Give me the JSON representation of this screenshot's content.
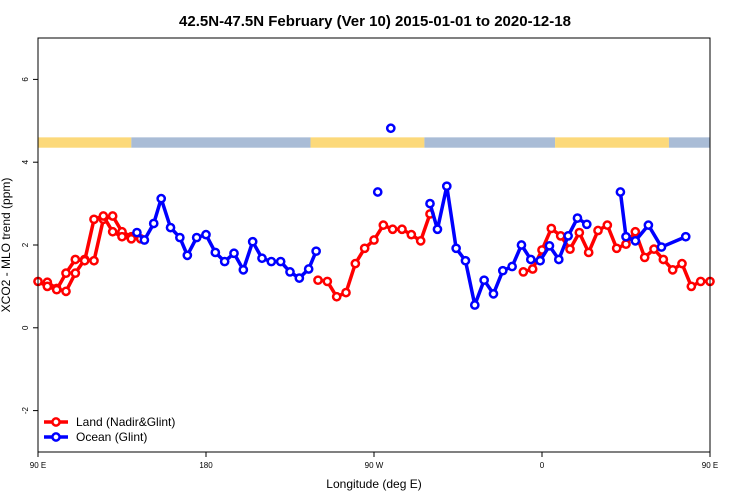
{
  "chart_data": {
    "type": "line",
    "title": "42.5N-47.5N February (Ver 10)   2015-01-01 to 2020-12-18",
    "xlabel": "Longitude (deg E)",
    "ylabel": "XCO2 - MLO trend (ppm)",
    "xlim": [
      90,
      450
    ],
    "ylim": [
      -3,
      7
    ],
    "x_ticks": [
      {
        "value": 90,
        "label": "90 E"
      },
      {
        "value": 180,
        "label": "180"
      },
      {
        "value": 270,
        "label": "90 W"
      },
      {
        "value": 360,
        "label": "0"
      },
      {
        "value": 450,
        "label": "90 E"
      },
      {
        "value": 540,
        "label": "180"
      }
    ],
    "y_ticks": [
      {
        "value": -2,
        "label": "-2"
      },
      {
        "value": 0,
        "label": "0"
      },
      {
        "value": 2,
        "label": "2"
      },
      {
        "value": 4,
        "label": "4"
      },
      {
        "value": 6,
        "label": "6"
      }
    ],
    "legend_position": "bottom-left",
    "land_ocean_band": {
      "y_range": [
        4.35,
        4.6
      ],
      "land_color": "#fcd97a",
      "ocean_color": "#a9bcd6",
      "segments": [
        {
          "from": 90,
          "to": 140,
          "kind": "land"
        },
        {
          "from": 140,
          "to": 236,
          "kind": "ocean"
        },
        {
          "from": 236,
          "to": 297,
          "kind": "land"
        },
        {
          "from": 297,
          "to": 367,
          "kind": "ocean"
        },
        {
          "from": 367,
          "to": 428,
          "kind": "land"
        },
        {
          "from": 428,
          "to": 450,
          "kind": "ocean"
        }
      ]
    },
    "series": [
      {
        "name": "Land (Nadir&Glint)",
        "color": "#ff0000",
        "segments": [
          [
            [
              95,
              1.1
            ],
            [
              100,
              0.95
            ],
            [
              105,
              0.88
            ],
            [
              110,
              1.32
            ],
            [
              115,
              1.65
            ],
            [
              120,
              1.62
            ],
            [
              125,
              2.62
            ],
            [
              130,
              2.7
            ],
            [
              135,
              2.32
            ],
            [
              140,
              2.2
            ],
            [
              145,
              2.15
            ]
          ],
          [
            [
              240,
              1.15
            ],
            [
              245,
              1.12
            ],
            [
              250,
              0.75
            ],
            [
              255,
              0.85
            ],
            [
              260,
              1.55
            ],
            [
              265,
              1.92
            ],
            [
              270,
              2.12
            ],
            [
              275,
              2.48
            ],
            [
              280,
              2.38
            ],
            [
              285,
              2.38
            ],
            [
              290,
              2.25
            ],
            [
              295,
              2.1
            ],
            [
              300,
              2.75
            ]
          ],
          [
            [
              350,
              1.35
            ],
            [
              355,
              1.42
            ],
            [
              360,
              1.88
            ],
            [
              365,
              2.4
            ],
            [
              370,
              2.22
            ],
            [
              375,
              1.9
            ],
            [
              380,
              2.3
            ],
            [
              385,
              1.82
            ],
            [
              390,
              2.35
            ],
            [
              395,
              2.48
            ],
            [
              400,
              1.92
            ],
            [
              405,
              2.02
            ],
            [
              410,
              2.32
            ],
            [
              415,
              1.7
            ],
            [
              420,
              1.9
            ],
            [
              425,
              1.65
            ],
            [
              430,
              1.4
            ],
            [
              435,
              1.55
            ],
            [
              440,
              1.0
            ],
            [
              445,
              1.12
            ],
            [
              450,
              1.12
            ]
          ],
          [
            [
              90,
              1.12
            ],
            [
              95,
              1.0
            ],
            [
              100,
              0.92
            ],
            [
              105,
              1.32
            ],
            [
              110,
              1.65
            ],
            [
              115,
              1.62
            ],
            [
              120,
              2.62
            ],
            [
              125,
              2.7
            ],
            [
              130,
              2.32
            ],
            [
              135,
              2.2
            ],
            [
              140,
              2.15
            ]
          ]
        ]
      },
      {
        "name": "Ocean (Glint)",
        "color": "#0000ff",
        "segments": [
          [
            [
              143,
              2.3
            ],
            [
              147,
              2.12
            ],
            [
              152,
              2.52
            ],
            [
              156,
              3.12
            ],
            [
              161,
              2.42
            ],
            [
              166,
              2.18
            ],
            [
              170,
              1.75
            ],
            [
              175,
              2.18
            ],
            [
              180,
              2.25
            ],
            [
              185,
              1.82
            ],
            [
              190,
              1.6
            ],
            [
              195,
              1.8
            ],
            [
              200,
              1.4
            ],
            [
              205,
              2.08
            ],
            [
              210,
              1.68
            ],
            [
              215,
              1.6
            ],
            [
              220,
              1.6
            ],
            [
              225,
              1.35
            ],
            [
              230,
              1.2
            ],
            [
              235,
              1.42
            ],
            [
              239,
              1.85
            ]
          ],
          [
            [
              272,
              3.28
            ]
          ],
          [
            [
              300,
              3.0
            ],
            [
              304,
              2.38
            ],
            [
              309,
              3.42
            ],
            [
              314,
              1.92
            ],
            [
              319,
              1.62
            ],
            [
              324,
              0.55
            ],
            [
              329,
              1.15
            ],
            [
              334,
              0.82
            ],
            [
              339,
              1.38
            ],
            [
              344,
              1.48
            ],
            [
              349,
              2.0
            ],
            [
              354,
              1.65
            ],
            [
              359,
              1.62
            ],
            [
              364,
              1.98
            ],
            [
              369,
              1.65
            ],
            [
              374,
              2.22
            ],
            [
              379,
              2.65
            ],
            [
              384,
              2.5
            ]
          ],
          [
            [
              402,
              3.28
            ],
            [
              405,
              2.2
            ],
            [
              410,
              2.1
            ],
            [
              417,
              2.48
            ],
            [
              424,
              1.95
            ],
            [
              437,
              2.2
            ]
          ]
        ],
        "outlier": [
          279,
          4.82
        ]
      }
    ]
  }
}
